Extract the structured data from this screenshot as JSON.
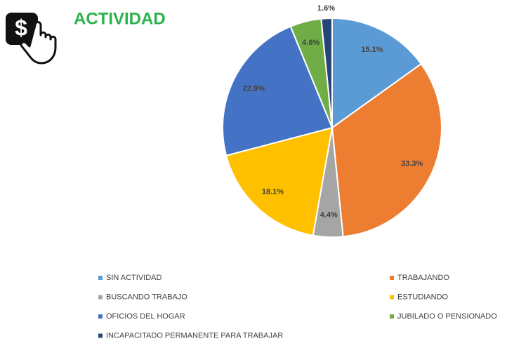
{
  "icon": "$",
  "chart_data": {
    "type": "pie",
    "title": "ACTIVIDAD",
    "categories": [
      "SIN ACTIVIDAD",
      "TRABAJANDO",
      "BUSCANDO TRABAJO",
      "ESTUDIANDO",
      "OFICIOS DEL HOGAR",
      "JUBILADO O PENSIONADO",
      "INCAPACITADO PERMANENTE PARA TRABAJAR"
    ],
    "values": [
      15.1,
      33.3,
      4.4,
      18.1,
      22.9,
      4.6,
      1.6
    ],
    "value_labels": [
      "15.1%",
      "33.3%",
      "4.4%",
      "18.1%",
      "22.9%",
      "4.6%",
      "1.6%"
    ],
    "colors": [
      "#5b9bd5",
      "#ed7d31",
      "#a5a5a5",
      "#ffc000",
      "#4472c4",
      "#70ad47",
      "#264478"
    ],
    "legend": "bottom"
  }
}
